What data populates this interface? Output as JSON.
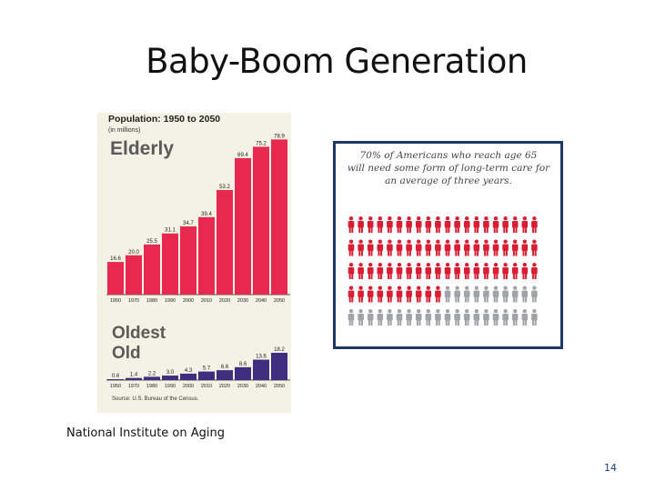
{
  "slide": {
    "title": "Baby-Boom Generation",
    "caption": "National Institute on Aging",
    "page_number": "14"
  },
  "colors": {
    "elderly_bar": "#e8294f",
    "oldest_old_bar": "#3f2d80",
    "figure_red": "#d81e32",
    "figure_gray": "#a0a3a8",
    "panel_border": "#1f3766",
    "panel_bg": "#f4f2e4"
  },
  "chart_data": [
    {
      "type": "bar",
      "title": "Population: 1950 to 2050",
      "subtitle": "(in millions)",
      "panel_label": "Elderly",
      "categories": [
        "1950",
        "1970",
        "1980",
        "1990",
        "2000",
        "2010",
        "2020",
        "2030",
        "2040",
        "2050"
      ],
      "values": [
        16.6,
        20.0,
        25.5,
        31.1,
        34.7,
        39.4,
        53.2,
        69.4,
        75.2,
        78.9
      ],
      "value_labels": [
        "16.6",
        "20.0",
        "25.5",
        "31.1",
        "34.7",
        "39.4",
        "53.2",
        "69.4",
        "75.2",
        "78.9"
      ],
      "ylim": [
        0,
        80
      ]
    },
    {
      "type": "bar",
      "panel_label": "Oldest Old",
      "categories": [
        "1950",
        "1970",
        "1980",
        "1990",
        "2000",
        "2010",
        "2020",
        "2030",
        "2040",
        "2050"
      ],
      "values": [
        0.6,
        1.4,
        2.2,
        3.0,
        4.3,
        5.7,
        6.6,
        8.6,
        13.6,
        18.2
      ],
      "value_labels": [
        "0.6",
        "1.4",
        "2.2",
        "3.0",
        "4.3",
        "5.7",
        "6.6",
        "8.6",
        "13.6",
        "18.2"
      ],
      "ylim": [
        0,
        18.2
      ],
      "source": "Source: U.S. Bureau of the Census."
    },
    {
      "type": "pictogram",
      "text": "70% of Americans who reach age 65 will need some form of long-term care for an average of three years.",
      "text_lines": [
        "70% of Americans who reach age 65",
        "will need some form of long-term care for",
        "an average of three years."
      ],
      "total": 100,
      "highlighted": 70,
      "rows": 5,
      "columns": 20
    }
  ]
}
